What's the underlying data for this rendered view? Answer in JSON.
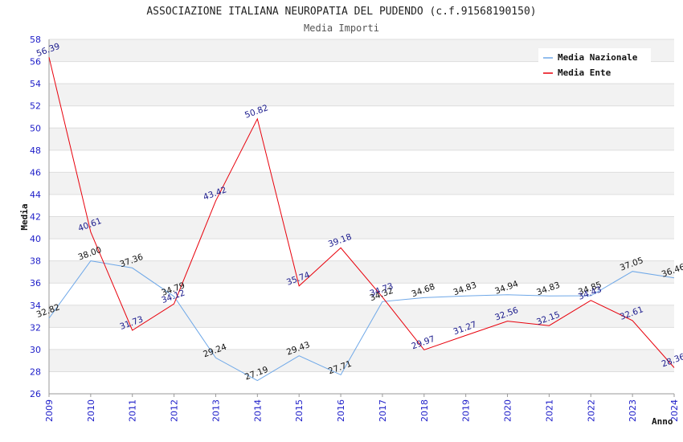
{
  "chart_data": {
    "type": "line",
    "title": "ASSOCIAZIONE ITALIANA NEUROPATIA DEL PUDENDO (c.f.91568190150)",
    "subtitle": "Media Importi",
    "xlabel": "Anno",
    "ylabel": "Media",
    "ylim": [
      26,
      58
    ],
    "ystep": 2,
    "grid": true,
    "legend_position": "top-right",
    "x": [
      "2009",
      "2010",
      "2011",
      "2012",
      "2013",
      "2014",
      "2015",
      "2016",
      "2017",
      "2018",
      "2019",
      "2020",
      "2021",
      "2022",
      "2023",
      "2024"
    ],
    "series": [
      {
        "name": "Media Nazionale",
        "color": "#6fa8e8",
        "label_color": "#111111",
        "values": [
          32.82,
          38.0,
          37.36,
          34.79,
          29.24,
          27.19,
          29.43,
          27.71,
          34.32,
          34.68,
          34.83,
          34.94,
          34.83,
          34.85,
          37.05,
          36.46
        ],
        "labels": [
          "32.82",
          "38.00",
          "37.36",
          "34.79",
          "29.24",
          "27.19",
          "29.43",
          "27.71",
          "34.32",
          "34.68",
          "34.83",
          "34.94",
          "34.83",
          "34.85",
          "37.05",
          "36.46"
        ]
      },
      {
        "name": "Media Ente",
        "color": "#e8000b",
        "label_color": "#1a1a8c",
        "values": [
          56.39,
          40.61,
          31.73,
          34.12,
          43.42,
          50.82,
          35.74,
          39.18,
          34.73,
          29.97,
          31.27,
          32.56,
          32.15,
          34.43,
          32.61,
          28.36
        ],
        "labels": [
          "56.39",
          "40.61",
          "31.73",
          "34.12",
          "43.42",
          "50.82",
          "35.74",
          "39.18",
          "34.73",
          "29.97",
          "31.27",
          "32.56",
          "32.15",
          "34.43",
          "32.61",
          "28.36"
        ]
      }
    ]
  },
  "colors": {
    "band": "#f2f2f2",
    "grid": "#dddddd",
    "axis": "#999999",
    "tick_text": "#1c1cc8"
  }
}
